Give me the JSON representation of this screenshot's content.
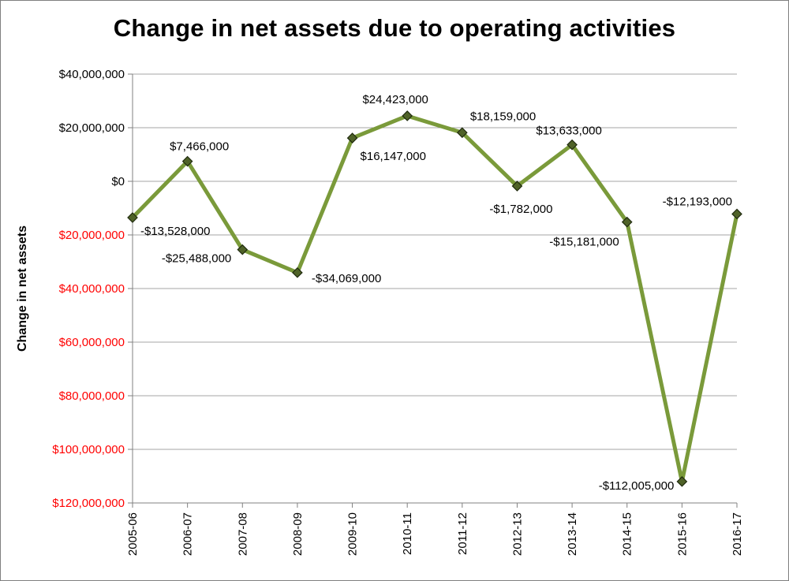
{
  "chart_data": {
    "type": "line",
    "title": "Change in net assets due to operating activities",
    "ylabel": "Change in net assets",
    "xlabel": "",
    "categories": [
      "2005-06",
      "2006-07",
      "2007-08",
      "2008-09",
      "2009-10",
      "2010-11",
      "2011-12",
      "2012-13",
      "2013-14",
      "2014-15",
      "2015-16",
      "2016-17"
    ],
    "series": [
      {
        "values": [
          -13528000,
          7466000,
          -25488000,
          -34069000,
          16147000,
          24423000,
          18159000,
          -1782000,
          13633000,
          -15181000,
          -112005000,
          -12193000
        ],
        "labels": [
          "-$13,528,000",
          "$7,466,000",
          "-$25,488,000",
          "-$34,069,000",
          "$16,147,000",
          "$24,423,000",
          "$18,159,000",
          "-$1,782,000",
          "$13,633,000",
          "-$15,181,000",
          "-$112,005,000",
          "-$12,193,000"
        ]
      }
    ],
    "ylim": [
      -120000000,
      40000000
    ],
    "yticks": [
      {
        "value": 40000000,
        "label": "$40,000,000"
      },
      {
        "value": 20000000,
        "label": "$20,000,000"
      },
      {
        "value": 0,
        "label": "$0"
      },
      {
        "value": -20000000,
        "label": "$20,000,000"
      },
      {
        "value": -40000000,
        "label": "$40,000,000"
      },
      {
        "value": -60000000,
        "label": "$60,000,000"
      },
      {
        "value": -80000000,
        "label": "$80,000,000"
      },
      {
        "value": -100000000,
        "label": "$100,000,000"
      },
      {
        "value": -120000000,
        "label": "$120,000,000"
      }
    ],
    "grid": true,
    "legend": "none",
    "colors": {
      "line": "#7a9a3a",
      "marker_fill": "#4f6228",
      "marker_stroke": "#1f2a0e",
      "positive_tick": "#000000",
      "negative_tick": "#ff0000",
      "grid": "#a6a6a6",
      "axis": "#808080"
    }
  }
}
